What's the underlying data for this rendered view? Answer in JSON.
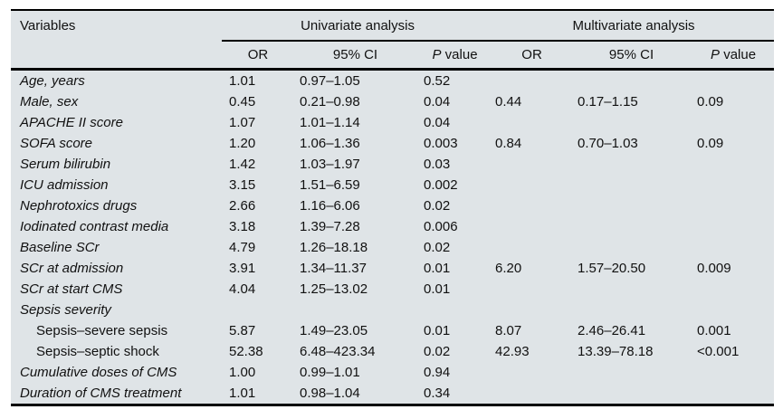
{
  "colors": {
    "table_bg": "#dfe4e7",
    "rule": "#000000",
    "text": "#111111",
    "page_bg": "#ffffff"
  },
  "header": {
    "variables": "Variables",
    "univariate": "Univariate analysis",
    "multivariate": "Multivariate analysis",
    "or": "OR",
    "ci": "95% CI",
    "p_italic": "P",
    "p_rest": "value"
  },
  "rows": [
    {
      "variable": "Age, years",
      "italic": true,
      "indent": false,
      "uni": {
        "or": "1.01",
        "ci": "0.97–1.05",
        "p": "0.52"
      },
      "multi": {
        "or": "",
        "ci": "",
        "p": ""
      }
    },
    {
      "variable": "Male, sex",
      "italic": true,
      "indent": false,
      "uni": {
        "or": "0.45",
        "ci": "0.21–0.98",
        "p": "0.04"
      },
      "multi": {
        "or": "0.44",
        "ci": "0.17–1.15",
        "p": "0.09"
      }
    },
    {
      "variable": "APACHE II score",
      "italic": true,
      "indent": false,
      "uni": {
        "or": "1.07",
        "ci": "1.01–1.14",
        "p": "0.04"
      },
      "multi": {
        "or": "",
        "ci": "",
        "p": ""
      }
    },
    {
      "variable": "SOFA score",
      "italic": true,
      "indent": false,
      "uni": {
        "or": "1.20",
        "ci": "1.06–1.36",
        "p": "0.003"
      },
      "multi": {
        "or": "0.84",
        "ci": "0.70–1.03",
        "p": "0.09"
      }
    },
    {
      "variable": "Serum bilirubin",
      "italic": true,
      "indent": false,
      "uni": {
        "or": "1.42",
        "ci": "1.03–1.97",
        "p": "0.03"
      },
      "multi": {
        "or": "",
        "ci": "",
        "p": ""
      }
    },
    {
      "variable": "ICU admission",
      "italic": true,
      "indent": false,
      "uni": {
        "or": "3.15",
        "ci": "1.51–6.59",
        "p": "0.002"
      },
      "multi": {
        "or": "",
        "ci": "",
        "p": ""
      }
    },
    {
      "variable": "Nephrotoxics drugs",
      "italic": true,
      "indent": false,
      "uni": {
        "or": "2.66",
        "ci": "1.16–6.06",
        "p": "0.02"
      },
      "multi": {
        "or": "",
        "ci": "",
        "p": ""
      }
    },
    {
      "variable": "Iodinated contrast media",
      "italic": true,
      "indent": false,
      "uni": {
        "or": "3.18",
        "ci": "1.39–7.28",
        "p": "0.006"
      },
      "multi": {
        "or": "",
        "ci": "",
        "p": ""
      }
    },
    {
      "variable": "Baseline SCr",
      "italic": true,
      "indent": false,
      "uni": {
        "or": "4.79",
        "ci": "1.26–18.18",
        "p": "0.02"
      },
      "multi": {
        "or": "",
        "ci": "",
        "p": ""
      }
    },
    {
      "variable": "SCr at admission",
      "italic": true,
      "indent": false,
      "uni": {
        "or": "3.91",
        "ci": "1.34–11.37",
        "p": "0.01"
      },
      "multi": {
        "or": "6.20",
        "ci": "1.57–20.50",
        "p": "0.009"
      }
    },
    {
      "variable": "SCr at start CMS",
      "italic": true,
      "indent": false,
      "uni": {
        "or": "4.04",
        "ci": "1.25–13.02",
        "p": "0.01"
      },
      "multi": {
        "or": "",
        "ci": "",
        "p": ""
      }
    },
    {
      "variable": "Sepsis severity",
      "italic": true,
      "indent": false,
      "uni": {
        "or": "",
        "ci": "",
        "p": ""
      },
      "multi": {
        "or": "",
        "ci": "",
        "p": ""
      }
    },
    {
      "variable": "Sepsis–severe sepsis",
      "italic": false,
      "indent": true,
      "uni": {
        "or": "5.87",
        "ci": "1.49–23.05",
        "p": "0.01"
      },
      "multi": {
        "or": "8.07",
        "ci": "2.46–26.41",
        "p": "0.001"
      }
    },
    {
      "variable": "Sepsis–septic shock",
      "italic": false,
      "indent": true,
      "uni": {
        "or": "52.38",
        "ci": "6.48–423.34",
        "p": "0.02"
      },
      "multi": {
        "or": "42.93",
        "ci": "13.39–78.18",
        "p": "<0.001"
      }
    },
    {
      "variable": "Cumulative doses of CMS",
      "italic": true,
      "indent": false,
      "uni": {
        "or": "1.00",
        "ci": "0.99–1.01",
        "p": "0.94"
      },
      "multi": {
        "or": "",
        "ci": "",
        "p": ""
      }
    },
    {
      "variable": "Duration of CMS treatment",
      "italic": true,
      "indent": false,
      "uni": {
        "or": "1.01",
        "ci": "0.98–1.04",
        "p": "0.34"
      },
      "multi": {
        "or": "",
        "ci": "",
        "p": ""
      }
    }
  ]
}
